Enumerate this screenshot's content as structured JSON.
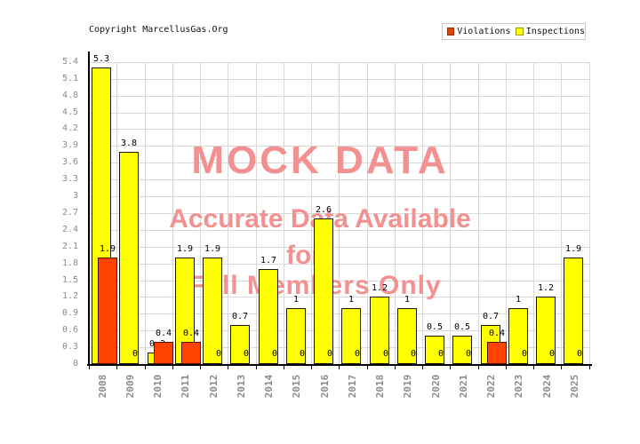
{
  "header": {
    "copyright": "Copyright MarcellusGas.Org"
  },
  "legend": {
    "violations": "Violations",
    "inspections": "Inspections"
  },
  "watermark": {
    "line1": "MOCK DATA",
    "line2": "Accurate Data Available",
    "line3": "for",
    "line4": "Full Members Only",
    "color": "#f39090"
  },
  "colors": {
    "violations": "#ff4200",
    "inspections": "#ffff00",
    "grid": "#d8d8d8",
    "axis_label": "#8a8a8a"
  },
  "chart_data": {
    "type": "bar",
    "title": "",
    "xlabel": "",
    "ylabel": "",
    "categories": [
      "2008",
      "2009",
      "2010",
      "2011",
      "2012",
      "2013",
      "2014",
      "2015",
      "2016",
      "2017",
      "2018",
      "2019",
      "2020",
      "2021",
      "2022",
      "2023",
      "2024",
      "2025"
    ],
    "series": [
      {
        "name": "Inspections",
        "color": "#ffff00",
        "values": [
          5.3,
          3.8,
          0.2,
          1.9,
          1.9,
          0.7,
          1.7,
          1,
          2.6,
          1,
          1.2,
          1,
          0.5,
          0.5,
          0.7,
          1,
          1.2,
          1.9
        ]
      },
      {
        "name": "Violations",
        "color": "#ff4200",
        "values": [
          1.9,
          0,
          0.4,
          0.4,
          0,
          0,
          0,
          0,
          0,
          0,
          0,
          0,
          0,
          0,
          0.4,
          0,
          0,
          0
        ]
      }
    ],
    "ylim": [
      0,
      5.4
    ],
    "ytick_step": 0.3,
    "grid": true,
    "legend_position": "top-right",
    "bar_value_labels": true,
    "zero_labels_shown": true
  }
}
